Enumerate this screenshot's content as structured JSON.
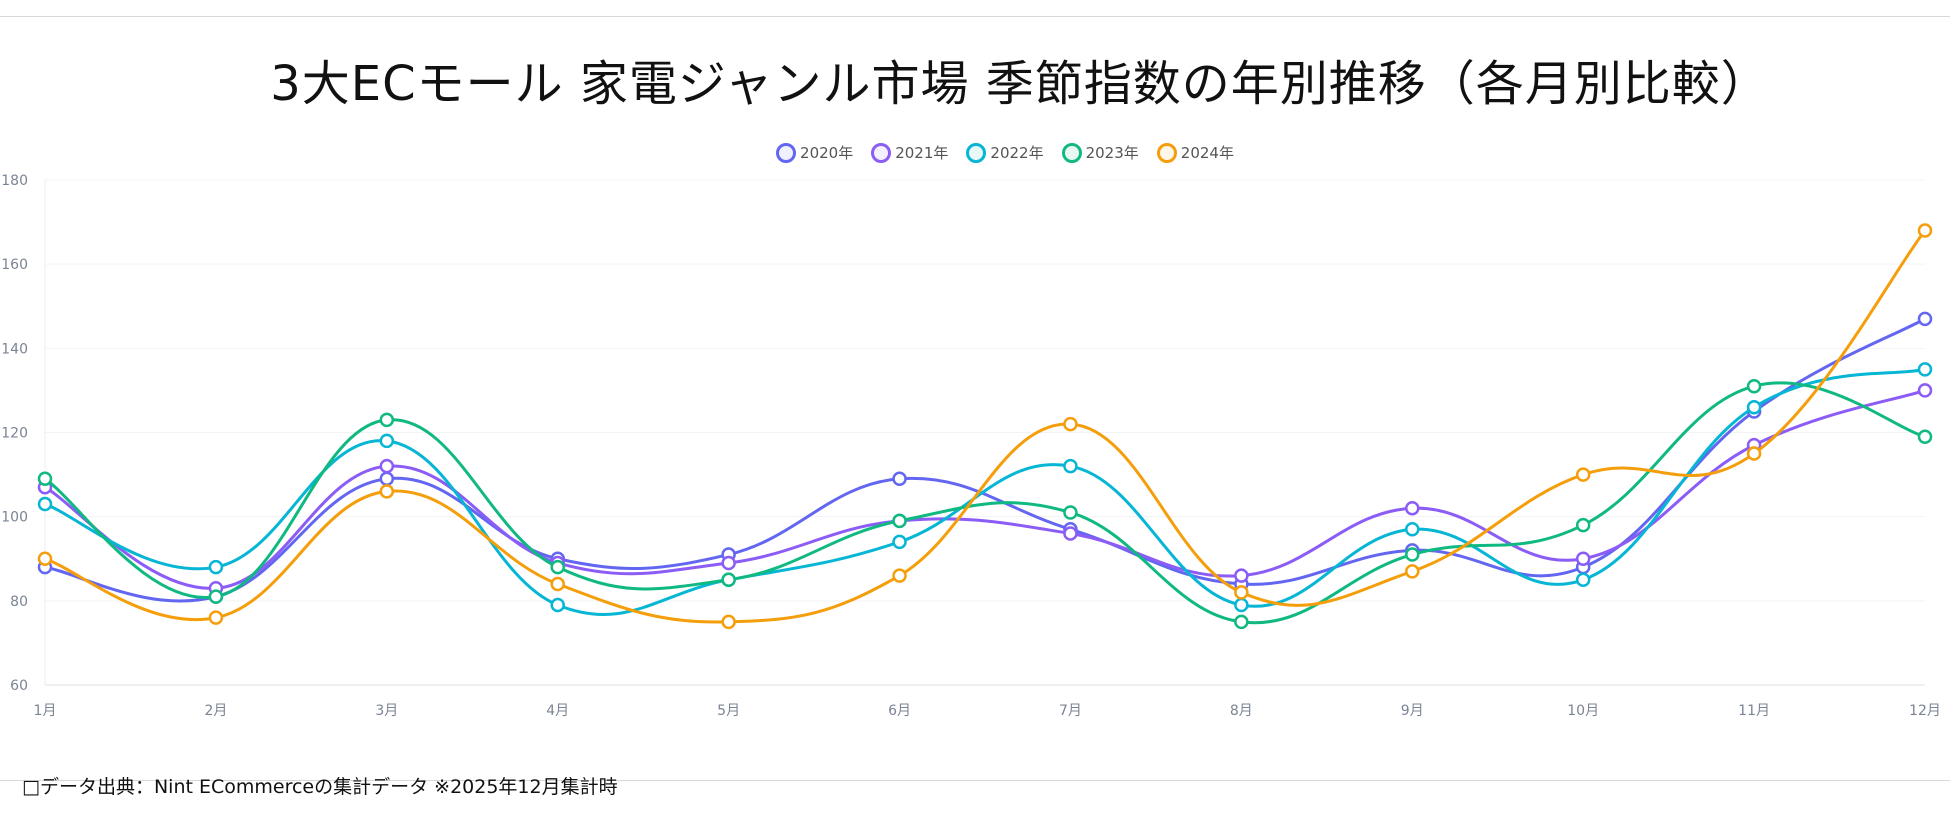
{
  "title": "3大ECモール 家電ジャンル市場 季節指数の年別推移（各月別比較）",
  "footer": "□データ出典：Nint ECommerceの集計データ ※2025年12月集計時",
  "chart_data": {
    "type": "line",
    "smooth": true,
    "categories": [
      "1月",
      "2月",
      "3月",
      "4月",
      "5月",
      "6月",
      "7月",
      "8月",
      "9月",
      "10月",
      "11月",
      "12月"
    ],
    "ylim": [
      60,
      180
    ],
    "yticks": [
      60,
      80,
      100,
      120,
      140,
      160,
      180
    ],
    "grid": true,
    "legend_position": "top-center",
    "series": [
      {
        "name": "2020年",
        "color": "#6366f1",
        "values": [
          88,
          81,
          109,
          90,
          91,
          109,
          97,
          84,
          92,
          88,
          125,
          147
        ]
      },
      {
        "name": "2021年",
        "color": "#8b5cf6",
        "values": [
          107,
          83,
          112,
          89,
          89,
          99,
          96,
          86,
          102,
          90,
          117,
          130
        ]
      },
      {
        "name": "2022年",
        "color": "#06b6d4",
        "values": [
          103,
          88,
          118,
          79,
          85,
          94,
          112,
          79,
          97,
          85,
          126,
          135
        ]
      },
      {
        "name": "2023年",
        "color": "#10b981",
        "values": [
          109,
          81,
          123,
          88,
          85,
          99,
          101,
          75,
          91,
          98,
          131,
          119
        ]
      },
      {
        "name": "2024年",
        "color": "#f59e0b",
        "values": [
          90,
          76,
          106,
          84,
          75,
          86,
          122,
          82,
          87,
          110,
          115,
          168
        ]
      }
    ]
  }
}
